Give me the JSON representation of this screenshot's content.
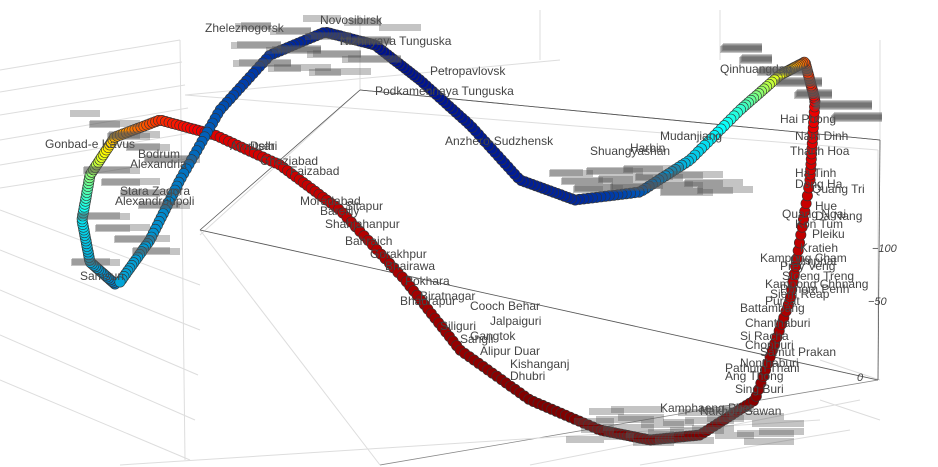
{
  "chart_data": {
    "type": "scatter",
    "mode": "markers+text",
    "colorscale": "jet",
    "axes": {
      "right_axis_ticks": [
        "0",
        "−50",
        "−100"
      ]
    },
    "labels_legible": [
      "Gonbad-e Kavus",
      "Shahjahanpur",
      "Sitapur",
      "Bahraich",
      "Gorakhpur",
      "Bhairawa",
      "Pokhara",
      "Biratnagar",
      "Siliguri",
      "Gangtok",
      "Alipur Duar",
      "Dhubri",
      "Moradabad",
      "Bareilly",
      "Faizabad",
      "Ghaziabad",
      "Delhi",
      "Amritsar",
      "Stara Zagora",
      "Alexandroupoli",
      "Alexandria",
      "Bodrum",
      "Samsun",
      "Zheleznogorsk",
      "Novosibirsk",
      "Nizhnyaya Tunguska",
      "Podkamennaya Tunguska",
      "Petropavlovsk",
      "Anzhero-Sudzhensk",
      "Shuangyashan",
      "Harbin",
      "Mudanjiang",
      "Qinhuangdao",
      "Hai Phong",
      "Nam Dinh",
      "Thanh Hoa",
      "Ha Tinh",
      "Dong Ha",
      "Quang Tri",
      "Hue",
      "Da Nang",
      "Quang Ngai",
      "Kon Tum",
      "Pleiku",
      "Lumphat",
      "Stoeng Treng",
      "Kratieh",
      "Kampong Cham",
      "Prey Veng",
      "Phnom Penh",
      "Kampong Chhnang",
      "Pursat",
      "Siem Reap",
      "Battambang",
      "Chanthaburi",
      "Si Racha",
      "Chonburi",
      "Samut Prakan",
      "Nonthaburi",
      "Pathum Thani",
      "Ang Thong",
      "Sing Buri",
      "Nakhon Sawan",
      "Kamphaeng Phet",
      "Bhadrapur",
      "Sangli",
      "Kishanganj",
      "Jalpaiguri",
      "Cooch Behar"
    ],
    "x": [
      0.0,
      0.05,
      0.1,
      0.15,
      0.2,
      0.25,
      0.3,
      0.35,
      0.4,
      0.45,
      0.5,
      0.55,
      0.6,
      0.65,
      0.7,
      0.75,
      0.8,
      0.85,
      0.9,
      0.95,
      1.0
    ],
    "y": [
      8.45,
      45.1,
      124.79,
      189.34,
      212.73,
      233.75,
      291.37,
      356.37,
      415.47,
      437.55,
      388.88,
      286.57,
      216.97,
      194.43,
      147.27,
      61.42,
      111.14,
      272.5,
      402.09,
      449.0,
      450.55
    ]
  }
}
